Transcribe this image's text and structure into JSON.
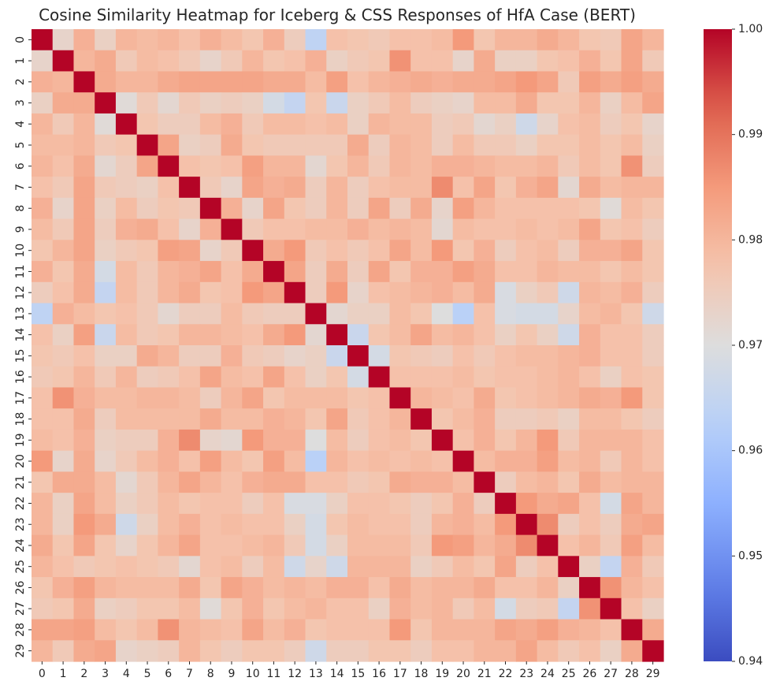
{
  "chart_data": {
    "type": "heatmap",
    "title": "Cosine Similarity Heatmap for Iceberg & CSS Responses of HfA Case (BERT)",
    "x_categories": [
      "0",
      "1",
      "2",
      "3",
      "4",
      "5",
      "6",
      "7",
      "8",
      "9",
      "10",
      "11",
      "12",
      "13",
      "14",
      "15",
      "16",
      "17",
      "18",
      "19",
      "20",
      "21",
      "22",
      "23",
      "24",
      "25",
      "26",
      "27",
      "28",
      "29"
    ],
    "y_categories": [
      "0",
      "1",
      "2",
      "3",
      "4",
      "5",
      "6",
      "7",
      "8",
      "9",
      "10",
      "11",
      "12",
      "13",
      "14",
      "15",
      "16",
      "17",
      "18",
      "19",
      "20",
      "21",
      "22",
      "23",
      "24",
      "25",
      "26",
      "27",
      "28",
      "29"
    ],
    "colorbar": {
      "min": 0.94,
      "max": 1.0,
      "colormap": "coolwarm",
      "ticks": [
        0.94,
        0.95,
        0.96,
        0.97,
        0.98,
        0.99,
        1.0
      ],
      "tick_labels": [
        "0.94",
        "0.95",
        "0.96",
        "0.97",
        "0.98",
        "0.99",
        "1.00"
      ]
    },
    "values": [
      [
        1.0,
        0.973,
        0.981,
        0.974,
        0.98,
        0.979,
        0.98,
        0.978,
        0.981,
        0.979,
        0.977,
        0.981,
        0.975,
        0.964,
        0.978,
        0.977,
        0.976,
        0.978,
        0.978,
        0.979,
        0.985,
        0.977,
        0.98,
        0.98,
        0.982,
        0.98,
        0.977,
        0.976,
        0.983,
        0.98
      ],
      [
        0.973,
        1.0,
        0.98,
        0.982,
        0.976,
        0.979,
        0.978,
        0.976,
        0.973,
        0.976,
        0.98,
        0.977,
        0.978,
        0.981,
        0.974,
        0.976,
        0.977,
        0.986,
        0.978,
        0.978,
        0.973,
        0.982,
        0.974,
        0.974,
        0.977,
        0.978,
        0.981,
        0.977,
        0.983,
        0.976
      ],
      [
        0.981,
        0.98,
        1.0,
        0.982,
        0.98,
        0.98,
        0.982,
        0.983,
        0.983,
        0.983,
        0.983,
        0.982,
        0.982,
        0.979,
        0.984,
        0.978,
        0.98,
        0.981,
        0.982,
        0.981,
        0.982,
        0.982,
        0.983,
        0.985,
        0.983,
        0.976,
        0.984,
        0.982,
        0.984,
        0.982
      ],
      [
        0.974,
        0.982,
        0.982,
        1.0,
        0.971,
        0.976,
        0.972,
        0.976,
        0.974,
        0.975,
        0.974,
        0.968,
        0.965,
        0.977,
        0.966,
        0.974,
        0.976,
        0.979,
        0.975,
        0.974,
        0.973,
        0.979,
        0.979,
        0.982,
        0.977,
        0.977,
        0.98,
        0.974,
        0.979,
        0.983
      ],
      [
        0.98,
        0.976,
        0.98,
        0.971,
        1.0,
        0.977,
        0.975,
        0.975,
        0.979,
        0.981,
        0.976,
        0.979,
        0.979,
        0.978,
        0.979,
        0.974,
        0.98,
        0.979,
        0.979,
        0.975,
        0.976,
        0.972,
        0.974,
        0.967,
        0.973,
        0.978,
        0.979,
        0.975,
        0.977,
        0.973
      ],
      [
        0.979,
        0.979,
        0.98,
        0.976,
        0.977,
        1.0,
        0.983,
        0.974,
        0.975,
        0.982,
        0.977,
        0.976,
        0.976,
        0.976,
        0.976,
        0.982,
        0.975,
        0.98,
        0.979,
        0.975,
        0.979,
        0.976,
        0.976,
        0.974,
        0.977,
        0.977,
        0.979,
        0.977,
        0.979,
        0.974
      ],
      [
        0.98,
        0.978,
        0.982,
        0.972,
        0.975,
        0.983,
        1.0,
        0.978,
        0.977,
        0.978,
        0.984,
        0.98,
        0.98,
        0.972,
        0.977,
        0.98,
        0.976,
        0.98,
        0.979,
        0.981,
        0.981,
        0.98,
        0.979,
        0.979,
        0.98,
        0.976,
        0.979,
        0.977,
        0.986,
        0.975
      ],
      [
        0.978,
        0.976,
        0.983,
        0.976,
        0.975,
        0.974,
        0.978,
        1.0,
        0.976,
        0.973,
        0.983,
        0.981,
        0.982,
        0.975,
        0.98,
        0.975,
        0.978,
        0.979,
        0.979,
        0.987,
        0.978,
        0.983,
        0.977,
        0.981,
        0.983,
        0.972,
        0.982,
        0.979,
        0.98,
        0.98
      ],
      [
        0.981,
        0.973,
        0.983,
        0.974,
        0.979,
        0.975,
        0.977,
        0.976,
        1.0,
        0.981,
        0.973,
        0.983,
        0.977,
        0.975,
        0.98,
        0.975,
        0.983,
        0.975,
        0.982,
        0.973,
        0.984,
        0.98,
        0.978,
        0.978,
        0.978,
        0.978,
        0.977,
        0.971,
        0.979,
        0.977
      ],
      [
        0.979,
        0.976,
        0.983,
        0.975,
        0.981,
        0.982,
        0.978,
        0.973,
        0.981,
        1.0,
        0.976,
        0.978,
        0.978,
        0.979,
        0.979,
        0.981,
        0.979,
        0.98,
        0.979,
        0.972,
        0.979,
        0.978,
        0.978,
        0.979,
        0.978,
        0.979,
        0.983,
        0.977,
        0.978,
        0.975
      ],
      [
        0.977,
        0.98,
        0.983,
        0.974,
        0.976,
        0.977,
        0.984,
        0.983,
        0.973,
        0.976,
        1.0,
        0.982,
        0.985,
        0.976,
        0.978,
        0.976,
        0.978,
        0.983,
        0.979,
        0.985,
        0.977,
        0.981,
        0.975,
        0.978,
        0.979,
        0.975,
        0.981,
        0.981,
        0.983,
        0.977
      ],
      [
        0.981,
        0.977,
        0.982,
        0.968,
        0.979,
        0.976,
        0.98,
        0.981,
        0.983,
        0.978,
        0.982,
        1.0,
        0.983,
        0.975,
        0.982,
        0.975,
        0.983,
        0.977,
        0.981,
        0.981,
        0.984,
        0.982,
        0.978,
        0.978,
        0.98,
        0.979,
        0.979,
        0.977,
        0.979,
        0.977
      ],
      [
        0.975,
        0.978,
        0.982,
        0.965,
        0.979,
        0.976,
        0.98,
        0.982,
        0.977,
        0.978,
        0.985,
        0.983,
        1.0,
        0.975,
        0.985,
        0.973,
        0.978,
        0.979,
        0.98,
        0.981,
        0.979,
        0.982,
        0.969,
        0.974,
        0.976,
        0.967,
        0.98,
        0.979,
        0.981,
        0.975
      ],
      [
        0.964,
        0.981,
        0.979,
        0.977,
        0.978,
        0.976,
        0.972,
        0.975,
        0.975,
        0.979,
        0.976,
        0.975,
        0.975,
        1.0,
        0.972,
        0.974,
        0.974,
        0.979,
        0.977,
        0.97,
        0.963,
        0.978,
        0.969,
        0.968,
        0.968,
        0.973,
        0.979,
        0.98,
        0.977,
        0.967
      ],
      [
        0.978,
        0.974,
        0.984,
        0.966,
        0.979,
        0.976,
        0.977,
        0.98,
        0.98,
        0.979,
        0.978,
        0.982,
        0.985,
        0.972,
        1.0,
        0.966,
        0.977,
        0.979,
        0.983,
        0.979,
        0.98,
        0.978,
        0.974,
        0.977,
        0.974,
        0.967,
        0.981,
        0.978,
        0.978,
        0.975
      ],
      [
        0.977,
        0.976,
        0.978,
        0.974,
        0.974,
        0.982,
        0.98,
        0.975,
        0.975,
        0.981,
        0.976,
        0.975,
        0.973,
        0.974,
        0.966,
        1.0,
        0.968,
        0.977,
        0.976,
        0.975,
        0.978,
        0.976,
        0.978,
        0.979,
        0.979,
        0.98,
        0.981,
        0.978,
        0.978,
        0.975
      ],
      [
        0.976,
        0.977,
        0.98,
        0.976,
        0.98,
        0.975,
        0.976,
        0.978,
        0.983,
        0.979,
        0.978,
        0.983,
        0.978,
        0.974,
        0.977,
        0.968,
        1.0,
        0.978,
        0.978,
        0.978,
        0.979,
        0.977,
        0.978,
        0.978,
        0.979,
        0.98,
        0.978,
        0.974,
        0.978,
        0.977
      ],
      [
        0.978,
        0.986,
        0.981,
        0.979,
        0.979,
        0.98,
        0.98,
        0.979,
        0.975,
        0.98,
        0.983,
        0.977,
        0.979,
        0.979,
        0.979,
        0.977,
        0.978,
        1.0,
        0.98,
        0.979,
        0.978,
        0.982,
        0.977,
        0.978,
        0.979,
        0.98,
        0.982,
        0.981,
        0.985,
        0.977
      ],
      [
        0.978,
        0.978,
        0.982,
        0.975,
        0.979,
        0.979,
        0.979,
        0.979,
        0.982,
        0.979,
        0.979,
        0.981,
        0.98,
        0.977,
        0.983,
        0.976,
        0.978,
        0.98,
        1.0,
        0.977,
        0.979,
        0.981,
        0.975,
        0.975,
        0.976,
        0.974,
        0.979,
        0.979,
        0.977,
        0.975
      ],
      [
        0.979,
        0.978,
        0.981,
        0.974,
        0.975,
        0.975,
        0.981,
        0.987,
        0.973,
        0.972,
        0.985,
        0.981,
        0.981,
        0.97,
        0.979,
        0.975,
        0.978,
        0.979,
        0.977,
        1.0,
        0.978,
        0.981,
        0.977,
        0.98,
        0.985,
        0.976,
        0.98,
        0.98,
        0.98,
        0.978
      ],
      [
        0.985,
        0.973,
        0.982,
        0.973,
        0.976,
        0.979,
        0.981,
        0.978,
        0.984,
        0.979,
        0.977,
        0.984,
        0.979,
        0.963,
        0.98,
        0.978,
        0.979,
        0.978,
        0.979,
        0.978,
        1.0,
        0.979,
        0.981,
        0.981,
        0.984,
        0.979,
        0.98,
        0.976,
        0.98,
        0.978
      ],
      [
        0.977,
        0.982,
        0.982,
        0.979,
        0.972,
        0.976,
        0.98,
        0.983,
        0.98,
        0.978,
        0.981,
        0.982,
        0.982,
        0.978,
        0.978,
        0.976,
        0.977,
        0.982,
        0.981,
        0.981,
        0.979,
        1.0,
        0.975,
        0.979,
        0.98,
        0.977,
        0.982,
        0.979,
        0.98,
        0.98
      ],
      [
        0.98,
        0.974,
        0.983,
        0.979,
        0.974,
        0.976,
        0.979,
        0.977,
        0.978,
        0.978,
        0.975,
        0.978,
        0.969,
        0.969,
        0.974,
        0.978,
        0.978,
        0.977,
        0.975,
        0.977,
        0.981,
        0.975,
        1.0,
        0.985,
        0.982,
        0.983,
        0.978,
        0.968,
        0.983,
        0.98
      ],
      [
        0.98,
        0.974,
        0.985,
        0.982,
        0.967,
        0.974,
        0.979,
        0.981,
        0.978,
        0.979,
        0.978,
        0.978,
        0.974,
        0.968,
        0.977,
        0.979,
        0.978,
        0.978,
        0.975,
        0.98,
        0.981,
        0.979,
        0.985,
        1.0,
        0.987,
        0.975,
        0.978,
        0.975,
        0.982,
        0.983
      ],
      [
        0.982,
        0.977,
        0.983,
        0.977,
        0.973,
        0.977,
        0.98,
        0.983,
        0.978,
        0.978,
        0.979,
        0.98,
        0.976,
        0.968,
        0.974,
        0.979,
        0.979,
        0.979,
        0.976,
        0.985,
        0.984,
        0.98,
        0.982,
        0.987,
        1.0,
        0.978,
        0.98,
        0.976,
        0.984,
        0.979
      ],
      [
        0.98,
        0.978,
        0.976,
        0.977,
        0.978,
        0.977,
        0.976,
        0.972,
        0.978,
        0.979,
        0.975,
        0.979,
        0.967,
        0.973,
        0.967,
        0.98,
        0.98,
        0.98,
        0.974,
        0.976,
        0.979,
        0.977,
        0.983,
        0.975,
        0.978,
        1.0,
        0.974,
        0.965,
        0.981,
        0.976
      ],
      [
        0.977,
        0.981,
        0.984,
        0.98,
        0.979,
        0.979,
        0.979,
        0.982,
        0.977,
        0.983,
        0.981,
        0.979,
        0.98,
        0.979,
        0.981,
        0.981,
        0.978,
        0.982,
        0.979,
        0.98,
        0.98,
        0.982,
        0.978,
        0.978,
        0.98,
        0.974,
        1.0,
        0.986,
        0.98,
        0.978
      ],
      [
        0.976,
        0.977,
        0.982,
        0.974,
        0.975,
        0.977,
        0.977,
        0.979,
        0.971,
        0.977,
        0.981,
        0.977,
        0.979,
        0.98,
        0.978,
        0.978,
        0.974,
        0.981,
        0.979,
        0.98,
        0.976,
        0.979,
        0.968,
        0.975,
        0.976,
        0.965,
        0.986,
        1.0,
        0.978,
        0.974
      ],
      [
        0.983,
        0.983,
        0.984,
        0.979,
        0.977,
        0.979,
        0.986,
        0.98,
        0.979,
        0.978,
        0.983,
        0.979,
        0.981,
        0.977,
        0.978,
        0.978,
        0.978,
        0.985,
        0.977,
        0.98,
        0.98,
        0.98,
        0.983,
        0.982,
        0.984,
        0.981,
        0.98,
        0.978,
        1.0,
        0.982
      ],
      [
        0.98,
        0.976,
        0.982,
        0.983,
        0.973,
        0.974,
        0.975,
        0.98,
        0.977,
        0.975,
        0.977,
        0.977,
        0.975,
        0.967,
        0.975,
        0.975,
        0.977,
        0.977,
        0.975,
        0.978,
        0.978,
        0.98,
        0.98,
        0.983,
        0.979,
        0.976,
        0.978,
        0.974,
        0.982,
        1.0
      ]
    ]
  }
}
